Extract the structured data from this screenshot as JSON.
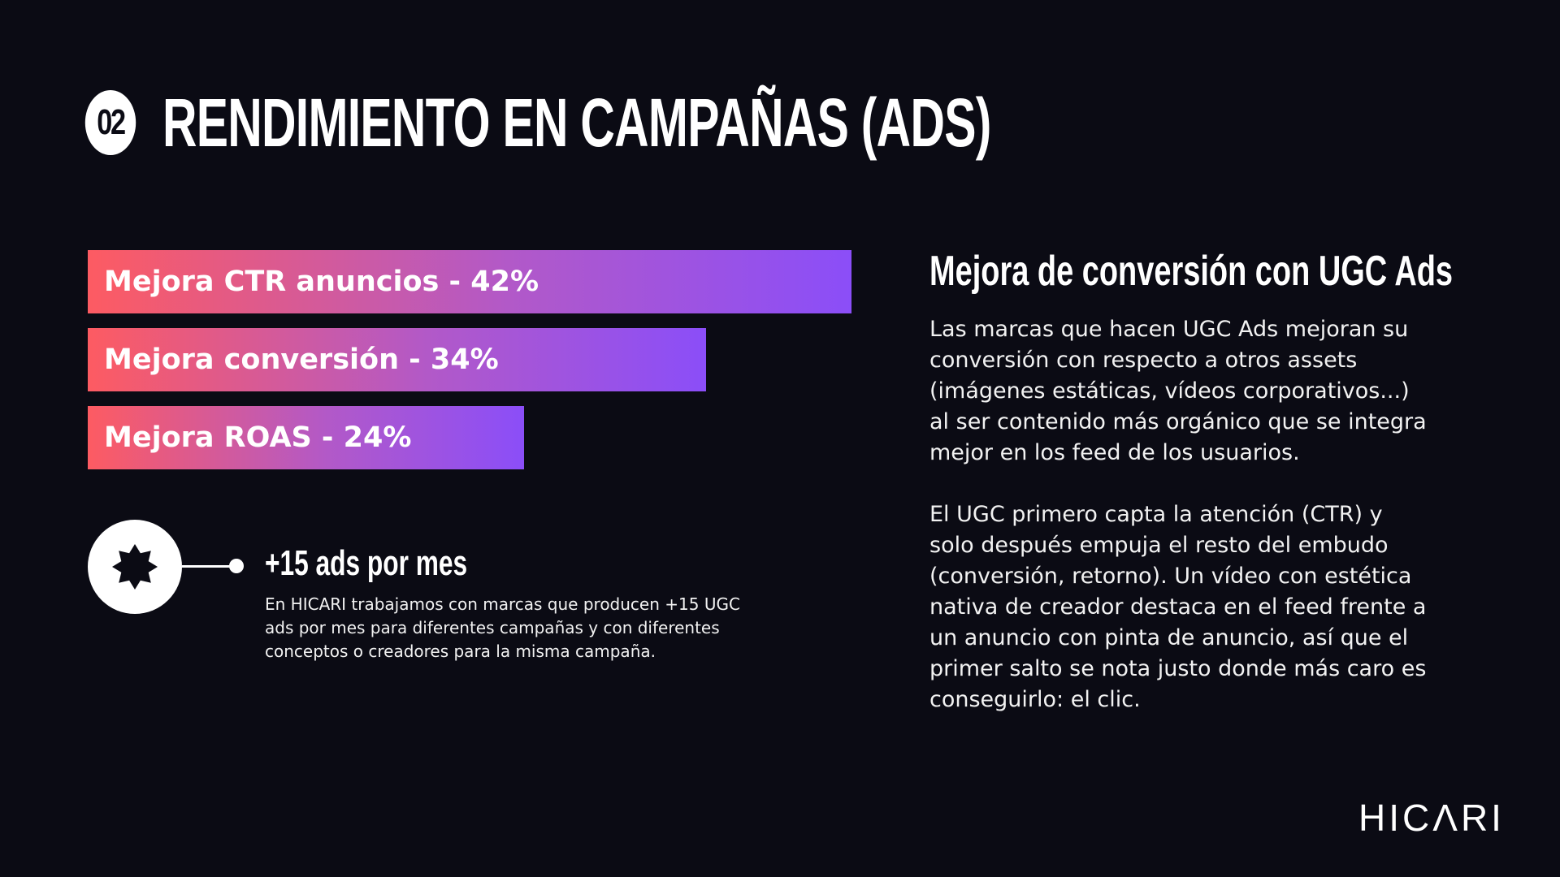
{
  "header": {
    "number": "02",
    "title": "RENDIMIENTO EN CAMPAÑAS (ADS)"
  },
  "chart_data": {
    "type": "bar",
    "orientation": "horizontal",
    "categories": [
      "Mejora CTR anuncios",
      "Mejora conversión",
      "Mejora ROAS"
    ],
    "values": [
      42,
      34,
      24
    ],
    "unit": "%",
    "labels": [
      "Mejora CTR anuncios - 42%",
      "Mejora conversión - 34%",
      "Mejora ROAS - 24%"
    ],
    "bar_gradient": [
      "#fd5b62",
      "#8b4ef8"
    ],
    "title": "",
    "xlabel": "",
    "ylabel": "",
    "grid": false,
    "legend": "none"
  },
  "ads_block": {
    "icon": "star-icon",
    "heading": "+15 ads por mes",
    "text": "En HICARI trabajamos con marcas que producen +15 UGC ads por mes para diferentes campañas y con diferentes conceptos o creadores para la misma campaña."
  },
  "side": {
    "heading": "Mejora de conversión con UGC Ads",
    "paragraphs": [
      "Las marcas que hacen UGC Ads mejoran su conversión con respecto a otros assets (imágenes estáticas, vídeos corporativos...) al ser contenido más orgánico que se integra mejor en los feed de los usuarios.",
      "El UGC primero capta la atención (CTR) y solo después empuja el resto del embudo (conversión, retorno). Un vídeo con estética nativa de creador destaca en el feed frente a un anuncio con pinta de anuncio, así que el primer salto se nota justo donde más caro es conseguirlo: el clic."
    ]
  },
  "brand": {
    "logo_text": "HICΛRI"
  },
  "colors": {
    "background": "#0b0b14",
    "text": "#ffffff",
    "bar_start": "#fd5b62",
    "bar_end": "#8b4ef8"
  }
}
